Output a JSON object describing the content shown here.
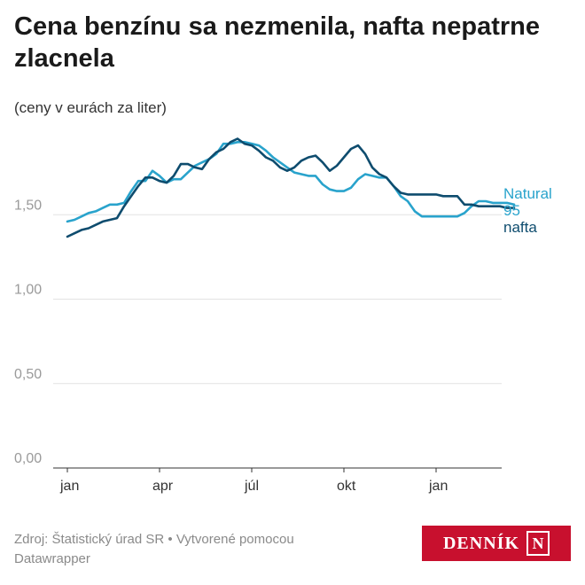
{
  "title": "Cena benzínu sa nezmenila, nafta nepatrne zlacnela",
  "subtitle": "(ceny v eurách za liter)",
  "footer": {
    "source": "Zdroj: Štatistický úrad SR",
    "separator": " • ",
    "credit": "Vytvorené pomocou Datawrapper"
  },
  "logo": {
    "text": "DENNÍK",
    "mark": "N",
    "color": "#c8102e"
  },
  "chart_data": {
    "type": "line",
    "ylim": [
      0,
      2
    ],
    "yticks": [
      0,
      0.5,
      1,
      1.5
    ],
    "ytick_labels": [
      "0,00",
      "0,50",
      "1,00",
      "1,50"
    ],
    "xticks": [
      {
        "week": 0,
        "label": "jan"
      },
      {
        "week": 13,
        "label": "apr"
      },
      {
        "week": 26,
        "label": "júl"
      },
      {
        "week": 39,
        "label": "okt"
      },
      {
        "week": 52,
        "label": "jan"
      }
    ],
    "grid": true,
    "series": [
      {
        "name": "Natural 95",
        "color": "#29a3cc",
        "x": [
          0,
          1,
          2,
          3,
          4,
          5,
          6,
          7,
          8,
          9,
          10,
          11,
          12,
          13,
          14,
          15,
          16,
          17,
          18,
          19,
          20,
          21,
          22,
          23,
          24,
          25,
          26,
          27,
          28,
          29,
          30,
          31,
          32,
          33,
          34,
          35,
          36,
          37,
          38,
          39,
          40,
          41,
          42,
          43,
          44,
          45,
          46,
          47,
          48,
          49,
          50,
          51,
          52,
          53,
          54,
          55,
          56,
          57,
          58,
          59,
          60,
          61,
          62,
          63
        ],
        "values": [
          1.46,
          1.47,
          1.49,
          1.51,
          1.52,
          1.54,
          1.56,
          1.56,
          1.57,
          1.64,
          1.7,
          1.7,
          1.76,
          1.73,
          1.69,
          1.71,
          1.71,
          1.75,
          1.79,
          1.81,
          1.83,
          1.86,
          1.92,
          1.92,
          1.93,
          1.93,
          1.92,
          1.91,
          1.88,
          1.84,
          1.81,
          1.78,
          1.75,
          1.74,
          1.73,
          1.73,
          1.68,
          1.65,
          1.64,
          1.64,
          1.66,
          1.71,
          1.74,
          1.73,
          1.72,
          1.72,
          1.67,
          1.61,
          1.58,
          1.52,
          1.49,
          1.49,
          1.49,
          1.49,
          1.49,
          1.49,
          1.51,
          1.55,
          1.58,
          1.58,
          1.57,
          1.57,
          1.57,
          1.56
        ]
      },
      {
        "name": "nafta",
        "color": "#0e4c6e",
        "x": [
          0,
          1,
          2,
          3,
          4,
          5,
          6,
          7,
          8,
          9,
          10,
          11,
          12,
          13,
          14,
          15,
          16,
          17,
          18,
          19,
          20,
          21,
          22,
          23,
          24,
          25,
          26,
          27,
          28,
          29,
          30,
          31,
          32,
          33,
          34,
          35,
          36,
          37,
          38,
          39,
          40,
          41,
          42,
          43,
          44,
          45,
          46,
          47,
          48,
          49,
          50,
          51,
          52,
          53,
          54,
          55,
          56,
          57,
          58,
          59,
          60,
          61,
          62,
          63
        ],
        "values": [
          1.37,
          1.39,
          1.41,
          1.42,
          1.44,
          1.46,
          1.47,
          1.48,
          1.55,
          1.61,
          1.67,
          1.72,
          1.72,
          1.7,
          1.69,
          1.73,
          1.8,
          1.8,
          1.78,
          1.77,
          1.83,
          1.87,
          1.89,
          1.93,
          1.95,
          1.92,
          1.91,
          1.88,
          1.84,
          1.82,
          1.78,
          1.76,
          1.78,
          1.82,
          1.84,
          1.85,
          1.81,
          1.76,
          1.79,
          1.84,
          1.89,
          1.91,
          1.86,
          1.78,
          1.74,
          1.72,
          1.67,
          1.63,
          1.62,
          1.62,
          1.62,
          1.62,
          1.62,
          1.61,
          1.61,
          1.61,
          1.56,
          1.56,
          1.55,
          1.55,
          1.55,
          1.55,
          1.54,
          1.54
        ]
      }
    ],
    "legend": [
      {
        "lines": [
          "Natural",
          "95"
        ],
        "color": "#29a3cc"
      },
      {
        "lines": [
          "nafta"
        ],
        "color": "#0e4c6e"
      }
    ]
  }
}
